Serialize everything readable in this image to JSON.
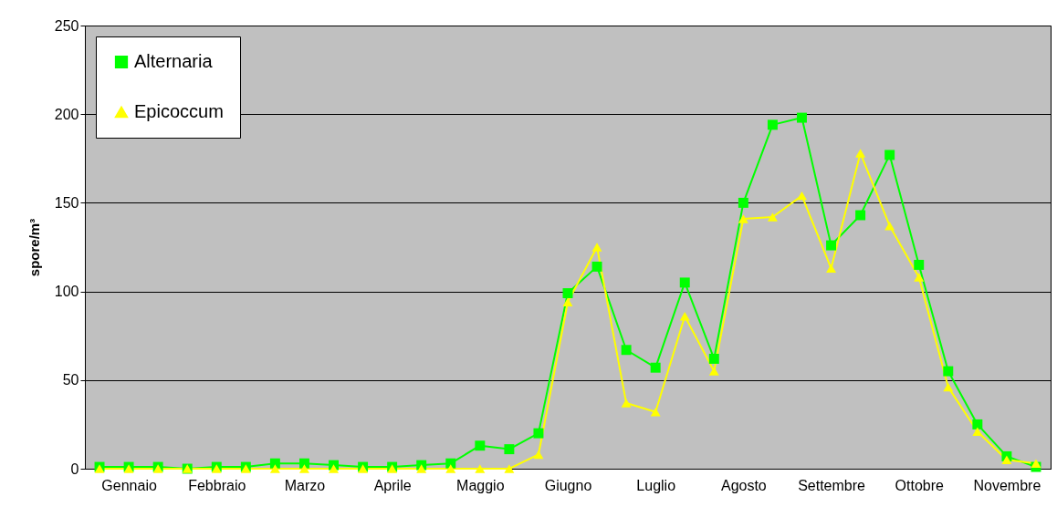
{
  "chart_data": {
    "type": "line",
    "ylabel": "spore/m³",
    "categories": [
      null,
      "Gennaio",
      null,
      null,
      "Febbraio",
      null,
      null,
      "Marzo",
      null,
      null,
      "Aprile",
      null,
      null,
      "Maggio",
      null,
      null,
      "Giugno",
      null,
      null,
      "Luglio",
      null,
      null,
      "Agosto",
      null,
      null,
      "Settembre",
      null,
      null,
      "Ottobre",
      null,
      null,
      "Novembre",
      null
    ],
    "series": [
      {
        "name": "Alternaria",
        "color": "#00ff00",
        "marker": "square",
        "values": [
          1,
          1,
          1,
          0,
          1,
          1,
          3,
          3,
          2,
          1,
          1,
          2,
          3,
          13,
          11,
          20,
          99,
          114,
          67,
          57,
          105,
          62,
          150,
          194,
          198,
          126,
          143,
          177,
          115,
          55,
          25,
          7,
          1
        ]
      },
      {
        "name": "Epicoccum",
        "color": "#ffff00",
        "marker": "triangle",
        "values": [
          0,
          0,
          0,
          0,
          0,
          0,
          0,
          0,
          0,
          0,
          0,
          0,
          0,
          0,
          0,
          8,
          94,
          125,
          37,
          32,
          86,
          55,
          141,
          142,
          154,
          113,
          178,
          137,
          108,
          46,
          21,
          5,
          3
        ]
      }
    ],
    "ylim": [
      0,
      250
    ],
    "yticks": [
      0,
      50,
      100,
      150,
      200,
      250
    ],
    "grid": "y",
    "legend": "top left"
  }
}
